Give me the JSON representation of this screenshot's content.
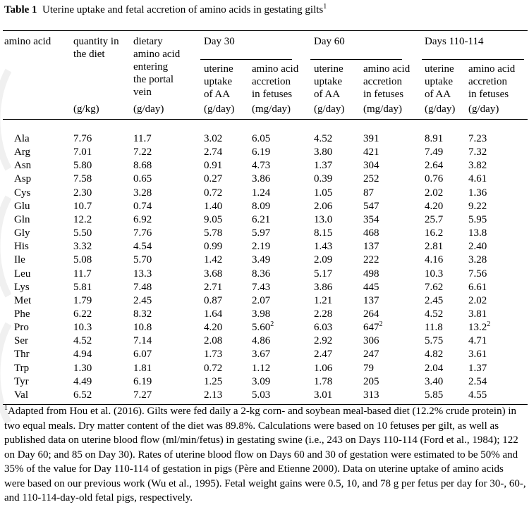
{
  "table": {
    "label": "Table 1",
    "title": "Uterine uptake and fetal accretion of amino acids in gestating gilts",
    "title_sup": "1",
    "col_headers": {
      "amino_acid": "amino acid",
      "quantity": "quantity in\nthe diet",
      "dietary": "dietary\namino acid\nentering\nthe portal\nvein",
      "uterine_uptake": "uterine\nuptake\nof AA",
      "aa_accretion": "amino acid\naccretion\nin fetuses"
    },
    "group_headers": [
      "Day 30",
      "Day 60",
      "Days 110-114"
    ],
    "units": [
      "(g/kg)",
      "(g/day)",
      "(g/day)",
      "(mg/day)",
      "(g/day)",
      "(mg/day)",
      "(g/day)",
      "(g/day)"
    ],
    "rows": [
      {
        "aa": "Ala",
        "v": [
          "7.76",
          "11.7",
          "3.02",
          "6.05",
          "4.52",
          "391",
          "8.91",
          "7.23"
        ]
      },
      {
        "aa": "Arg",
        "v": [
          "7.01",
          "7.22",
          "2.74",
          "6.19",
          "3.80",
          "421",
          "7.49",
          "7.32"
        ]
      },
      {
        "aa": "Asn",
        "v": [
          "5.80",
          "8.68",
          "0.91",
          "4.73",
          "1.37",
          "304",
          "2.64",
          "3.82"
        ]
      },
      {
        "aa": "Asp",
        "v": [
          "7.58",
          "0.65",
          "0.27",
          "3.86",
          "0.39",
          "252",
          "0.76",
          "4.61"
        ]
      },
      {
        "aa": "Cys",
        "v": [
          "2.30",
          "3.28",
          "0.72",
          "1.24",
          "1.05",
          "87",
          "2.02",
          "1.36"
        ]
      },
      {
        "aa": "Glu",
        "v": [
          "10.7",
          "0.74",
          "1.40",
          "8.09",
          "2.06",
          "547",
          "4.20",
          "9.22"
        ]
      },
      {
        "aa": "Gln",
        "v": [
          "12.2",
          "6.92",
          "9.05",
          "6.21",
          "13.0",
          "354",
          "25.7",
          "5.95"
        ]
      },
      {
        "aa": "Gly",
        "v": [
          "5.50",
          "7.76",
          "5.78",
          "5.97",
          "8.15",
          "468",
          "16.2",
          "13.8"
        ]
      },
      {
        "aa": "His",
        "v": [
          "3.32",
          "4.54",
          "0.99",
          "2.19",
          "1.43",
          "137",
          "2.81",
          "2.40"
        ]
      },
      {
        "aa": "Ile",
        "v": [
          "5.08",
          "5.70",
          "1.42",
          "3.49",
          "2.09",
          "222",
          "4.16",
          "3.28"
        ]
      },
      {
        "aa": "Leu",
        "v": [
          "11.7",
          "13.3",
          "3.68",
          "8.36",
          "5.17",
          "498",
          "10.3",
          "7.56"
        ]
      },
      {
        "aa": "Lys",
        "v": [
          "5.81",
          "7.48",
          "2.71",
          "7.43",
          "3.86",
          "445",
          "7.62",
          "6.61"
        ]
      },
      {
        "aa": "Met",
        "v": [
          "1.79",
          "2.45",
          "0.87",
          "2.07",
          "1.21",
          "137",
          "2.45",
          "2.02"
        ]
      },
      {
        "aa": "Phe",
        "v": [
          "6.22",
          "8.32",
          "1.64",
          "3.98",
          "2.28",
          "264",
          "4.52",
          "3.81"
        ]
      },
      {
        "aa": "Pro",
        "v": [
          "10.3",
          "10.8",
          "4.20",
          "5.60",
          "6.03",
          "647",
          "11.8",
          "13.2"
        ],
        "sup": {
          "3": "2",
          "5": "2",
          "7": "2"
        }
      },
      {
        "aa": "Ser",
        "v": [
          "4.52",
          "7.14",
          "2.08",
          "4.86",
          "2.92",
          "306",
          "5.75",
          "4.71"
        ]
      },
      {
        "aa": "Thr",
        "v": [
          "4.94",
          "6.07",
          "1.73",
          "3.67",
          "2.47",
          "247",
          "4.82",
          "3.61"
        ]
      },
      {
        "aa": "Trp",
        "v": [
          "1.30",
          "1.81",
          "0.72",
          "1.12",
          "1.06",
          "79",
          "2.04",
          "1.37"
        ]
      },
      {
        "aa": "Tyr",
        "v": [
          "4.49",
          "6.19",
          "1.25",
          "3.09",
          "1.78",
          "205",
          "3.40",
          "2.54"
        ]
      },
      {
        "aa": "Val",
        "v": [
          "6.52",
          "7.27",
          "2.13",
          "5.03",
          "3.01",
          "313",
          "5.85",
          "4.55"
        ]
      }
    ],
    "footnote_sup": "1",
    "footnote": "Adapted from Hou et al. (2016). Gilts were fed daily a 2-kg corn- and soybean meal-based diet (12.2% crude protein) in two equal meals. Dry matter content of the diet was 89.8%. Calculations were based on 10 fetuses per gilt, as well as published data on uterine blood flow (ml/min/fetus) in gestating swine (i.e., 243 on Days 110-114 (Ford et al., 1984); 122 on Day 60; and 85 on Day 30). Rates of uterine blood flow on Days 60 and 30 of gestation were estimated to be 50% and 35% of the value for Day 110-114 of gestation in pigs (Père and Etienne 2000).  Data on uterine uptake of amino acids were based on our previous work (Wu et al., 1995). Fetal weight gains were 0.5, 10, and 78 g per fetus per day for 30-, 60-, and 110-114-day-old fetal pigs, respectively."
  }
}
